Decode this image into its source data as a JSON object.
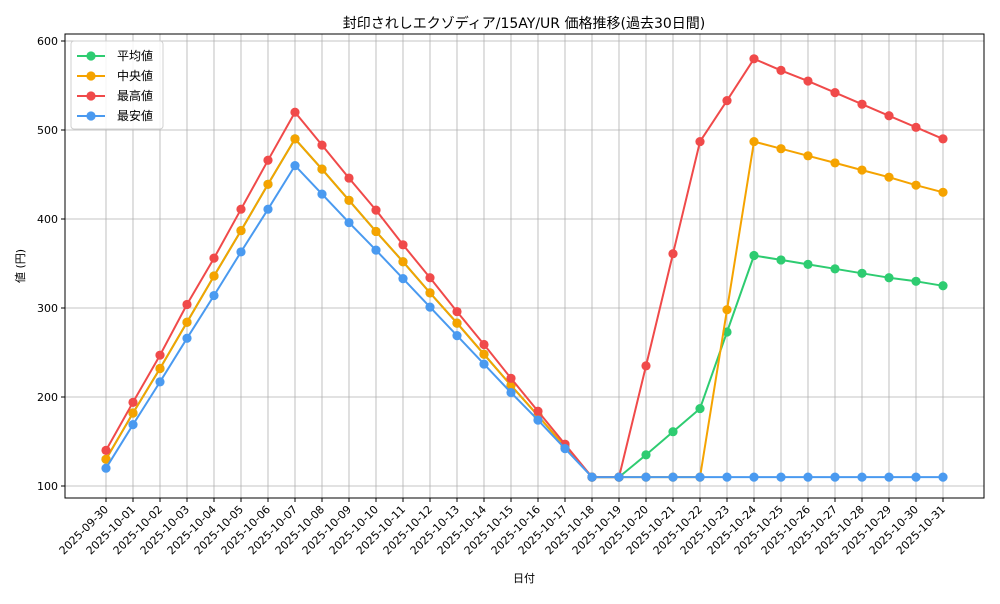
{
  "chart_data": {
    "type": "line",
    "title": "封印されしエクゾディア/15AY/UR 価格推移(過去30日間)",
    "xlabel": "日付",
    "ylabel": "値 (円)",
    "ylim": [
      85,
      603
    ],
    "yticks": [
      100,
      200,
      300,
      400,
      500,
      600
    ],
    "grid": true,
    "legend_position": "upper left",
    "x": [
      "2025-09-30",
      "2025-10-01",
      "2025-10-02",
      "2025-10-03",
      "2025-10-04",
      "2025-10-05",
      "2025-10-06",
      "2025-10-07",
      "2025-10-08",
      "2025-10-09",
      "2025-10-10",
      "2025-10-11",
      "2025-10-12",
      "2025-10-13",
      "2025-10-14",
      "2025-10-15",
      "2025-10-16",
      "2025-10-17",
      "2025-10-18",
      "2025-10-19",
      "2025-10-20",
      "2025-10-21",
      "2025-10-22",
      "2025-10-23",
      "2025-10-24",
      "2025-10-25",
      "2025-10-26",
      "2025-10-27",
      "2025-10-28",
      "2025-10-29",
      "2025-10-30",
      "2025-10-31"
    ],
    "series": [
      {
        "name": "平均値",
        "color": "#2ecc71",
        "values": [
          130,
          182,
          232,
          284,
          336,
          387,
          439,
          490,
          456,
          421,
          386,
          352,
          317,
          283,
          248,
          213,
          179,
          144,
          110,
          110,
          135,
          161,
          187,
          273,
          359,
          354,
          349,
          344,
          339,
          334,
          330,
          325
        ]
      },
      {
        "name": "中央値",
        "color": "#f5a300",
        "values": [
          130,
          182,
          232,
          284,
          336,
          387,
          439,
          490,
          456,
          421,
          386,
          352,
          317,
          283,
          248,
          213,
          179,
          144,
          110,
          110,
          110,
          110,
          110,
          298,
          487,
          479,
          471,
          463,
          455,
          447,
          438,
          430
        ]
      },
      {
        "name": "最高値",
        "color": "#f04a4a",
        "values": [
          140,
          194,
          247,
          304,
          356,
          411,
          466,
          520,
          483,
          446,
          410,
          371,
          334,
          296,
          259,
          221,
          184,
          147,
          110,
          110,
          235,
          361,
          487,
          533,
          580,
          567,
          555,
          542,
          529,
          516,
          503,
          490
        ]
      },
      {
        "name": "最安値",
        "color": "#4a9af0",
        "values": [
          120,
          169,
          217,
          266,
          314,
          363,
          411,
          460,
          428,
          396,
          365,
          333,
          301,
          269,
          237,
          205,
          174,
          142,
          110,
          110,
          110,
          110,
          110,
          110,
          110,
          110,
          110,
          110,
          110,
          110,
          110,
          110
        ]
      }
    ]
  }
}
